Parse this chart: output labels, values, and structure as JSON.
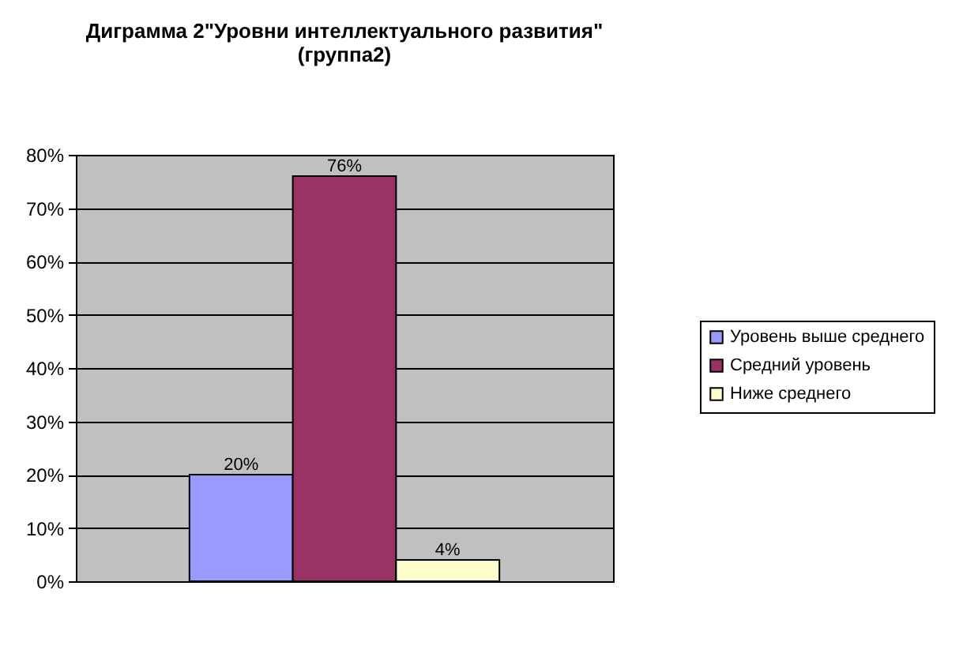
{
  "chart_data": {
    "type": "bar",
    "title": "Диграмма 2\"Уровни интеллектуального развития\"\n(группа2)",
    "categories": [
      null
    ],
    "series": [
      {
        "name": "Уровень выше среднего",
        "color": "#9999ff",
        "values": [
          20
        ],
        "value_labels": [
          "20%"
        ]
      },
      {
        "name": "Средний уровень",
        "color": "#993366",
        "values": [
          76
        ],
        "value_labels": [
          "76%"
        ]
      },
      {
        "name": "Ниже среднего",
        "color": "#ffffcc",
        "values": [
          4
        ],
        "value_labels": [
          "4%"
        ]
      }
    ],
    "ylim": [
      0,
      80
    ],
    "yticks": [
      {
        "value": 0,
        "label": "0%"
      },
      {
        "value": 10,
        "label": "10%"
      },
      {
        "value": 20,
        "label": "20%"
      },
      {
        "value": 30,
        "label": "30%"
      },
      {
        "value": 40,
        "label": "40%"
      },
      {
        "value": 50,
        "label": "50%"
      },
      {
        "value": 60,
        "label": "60%"
      },
      {
        "value": 70,
        "label": "70%"
      },
      {
        "value": 80,
        "label": "80%"
      }
    ],
    "grid": "y",
    "legend": "right",
    "tick_labels": "y"
  }
}
